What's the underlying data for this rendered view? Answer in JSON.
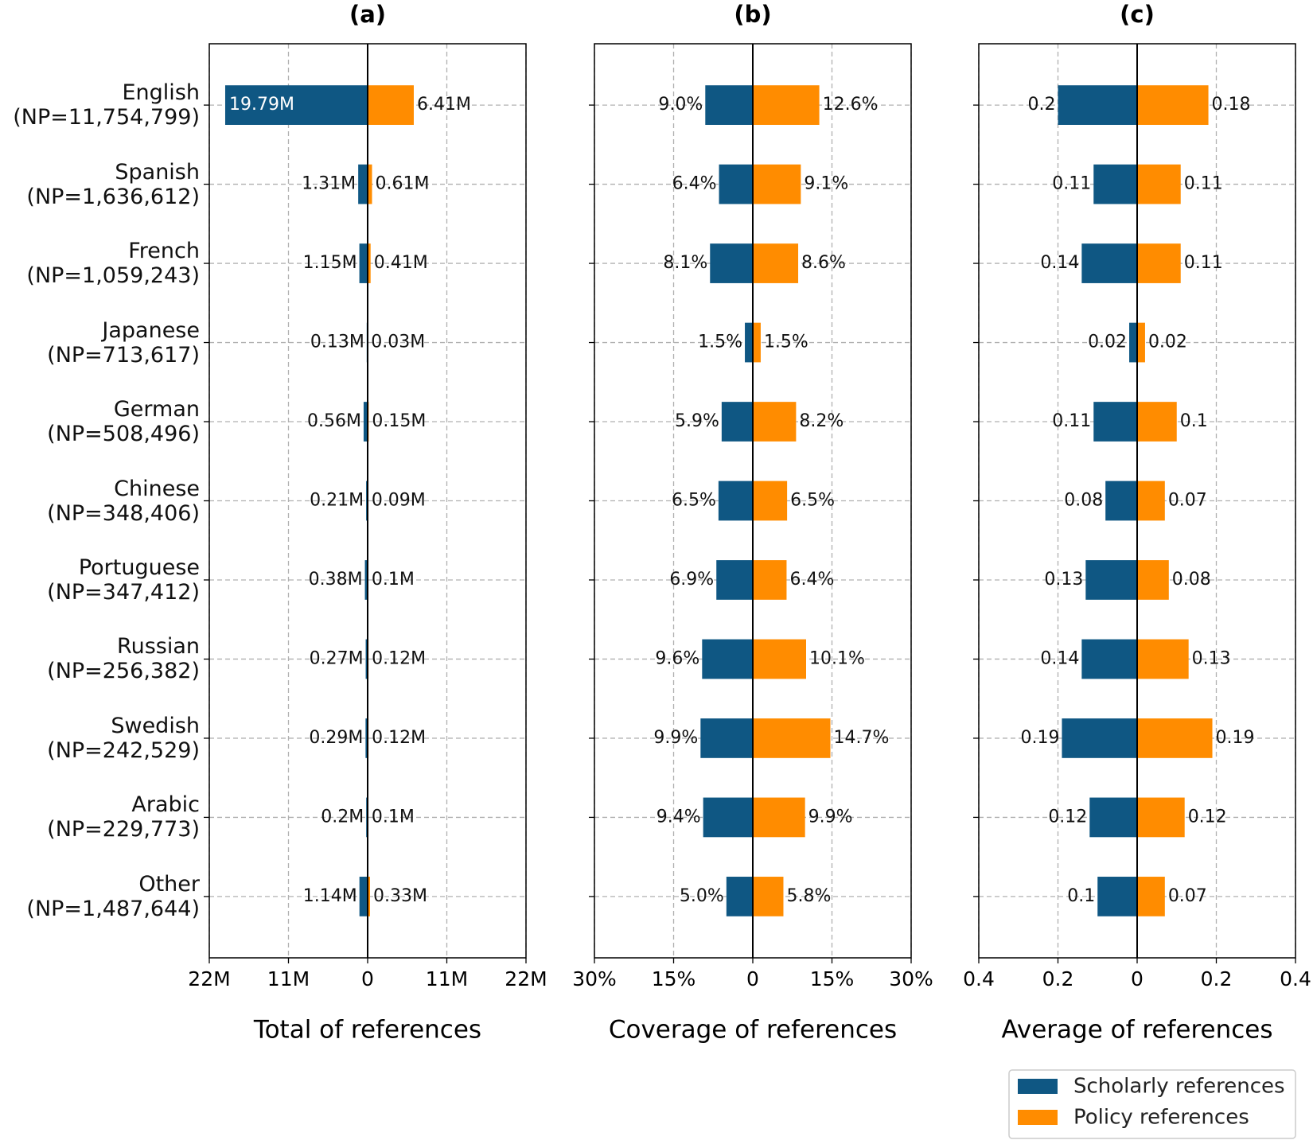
{
  "chart_data": [
    {
      "type": "bar",
      "orientation": "horizontal",
      "title": "(a)",
      "xlabel": "Total of references",
      "grid": true,
      "categories": [
        "English\n(NP=11,754,799)",
        "Spanish\n(NP=1,636,612)",
        "French\n(NP=1,059,243)",
        "Japanese\n(NP=713,617)",
        "German\n(NP=508,496)",
        "Chinese\n(NP=348,406)",
        "Portuguese\n(NP=347,412)",
        "Russian\n(NP=256,382)",
        "Swedish\n(NP=242,529)",
        "Arabic\n(NP=229,773)",
        "Other\n(NP=1,487,644)"
      ],
      "xlim": [
        -22,
        22
      ],
      "xticks": [
        {
          "value": -22,
          "label": "22M"
        },
        {
          "value": -11,
          "label": "11M"
        },
        0,
        {
          "value": 11,
          "label": "11M"
        },
        {
          "value": 22,
          "label": "22M"
        }
      ],
      "series": [
        {
          "side": "left",
          "color": "#0f5783",
          "values": [
            19.79,
            1.31,
            1.15,
            0.13,
            0.56,
            0.21,
            0.38,
            0.27,
            0.29,
            0.2,
            1.14
          ],
          "value_labels": [
            "19.79M",
            "1.31M",
            "1.15M",
            "0.13M",
            "0.56M",
            "0.21M",
            "0.38M",
            "0.27M",
            "0.29M",
            "0.2M",
            "1.14M"
          ]
        },
        {
          "side": "right",
          "color": "#ff8c00",
          "values": [
            6.41,
            0.61,
            0.41,
            0.03,
            0.15,
            0.09,
            0.1,
            0.12,
            0.12,
            0.1,
            0.33
          ],
          "value_labels": [
            "6.41M",
            "0.61M",
            "0.41M",
            "0.03M",
            "0.15M",
            "0.09M",
            "0.1M",
            "0.12M",
            "0.12M",
            "0.1M",
            "0.33M"
          ]
        }
      ]
    },
    {
      "type": "bar",
      "orientation": "horizontal",
      "title": "(b)",
      "xlabel": "Coverage of references",
      "grid": true,
      "xlim": [
        -30,
        30
      ],
      "xticks": [
        {
          "value": -30,
          "label": "30%"
        },
        {
          "value": -15,
          "label": "15%"
        },
        0,
        {
          "value": 15,
          "label": "15%"
        },
        {
          "value": 30,
          "label": "30%"
        }
      ],
      "series": [
        {
          "side": "left",
          "color": "#0f5783",
          "values": [
            9.0,
            6.4,
            8.1,
            1.5,
            5.9,
            6.5,
            6.9,
            9.6,
            9.9,
            9.4,
            5.0
          ],
          "value_labels": [
            "9.0%",
            "6.4%",
            "8.1%",
            "1.5%",
            "5.9%",
            "6.5%",
            "6.9%",
            "9.6%",
            "9.9%",
            "9.4%",
            "5.0%"
          ]
        },
        {
          "side": "right",
          "color": "#ff8c00",
          "values": [
            12.6,
            9.1,
            8.6,
            1.5,
            8.2,
            6.5,
            6.4,
            10.1,
            14.7,
            9.9,
            5.8
          ],
          "value_labels": [
            "12.6%",
            "9.1%",
            "8.6%",
            "1.5%",
            "8.2%",
            "6.5%",
            "6.4%",
            "10.1%",
            "14.7%",
            "9.9%",
            "5.8%"
          ]
        }
      ]
    },
    {
      "type": "bar",
      "orientation": "horizontal",
      "title": "(c)",
      "xlabel": "Average of references",
      "grid": true,
      "legend": "lower right",
      "xlim": [
        -0.4,
        0.4
      ],
      "xticks": [
        {
          "value": -0.4,
          "label": "0.4"
        },
        {
          "value": -0.2,
          "label": "0.2"
        },
        0,
        0.2,
        0.4
      ],
      "series": [
        {
          "name": "Scholarly references",
          "side": "left",
          "color": "#0f5783",
          "values": [
            0.2,
            0.11,
            0.14,
            0.02,
            0.11,
            0.08,
            0.13,
            0.14,
            0.19,
            0.12,
            0.1
          ]
        },
        {
          "name": "Policy references",
          "side": "right",
          "color": "#ff8c00",
          "values": [
            0.18,
            0.11,
            0.11,
            0.02,
            0.1,
            0.07,
            0.08,
            0.13,
            0.19,
            0.12,
            0.07
          ]
        }
      ]
    }
  ]
}
